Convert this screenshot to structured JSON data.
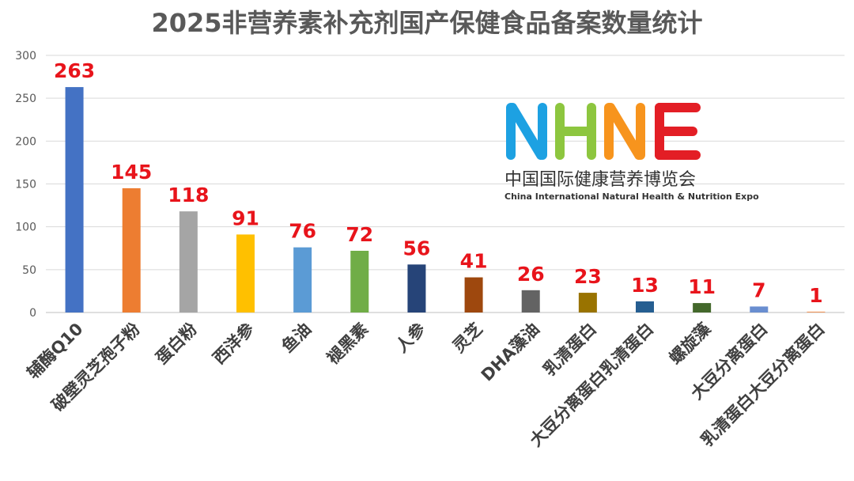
{
  "chart_data": {
    "type": "bar",
    "title": "2025非营养素补充剂国产保健食品备案数量统计",
    "categories": [
      "辅酶Q10",
      "破壁灵芝孢子粉",
      "蛋白粉",
      "西洋参",
      "鱼油",
      "褪黑素",
      "人参",
      "灵芝",
      "DHA藻油",
      "乳清蛋白",
      "大豆分离蛋白乳清蛋白",
      "螺旋藻",
      "大豆分离蛋白",
      "乳清蛋白大豆分离蛋白"
    ],
    "values": [
      263,
      145,
      118,
      91,
      76,
      72,
      56,
      41,
      26,
      23,
      13,
      11,
      7,
      1
    ],
    "colors": [
      "#4472c4",
      "#ed7d31",
      "#a5a5a5",
      "#ffc000",
      "#5b9bd5",
      "#70ad47",
      "#264478",
      "#9e480e",
      "#636363",
      "#997300",
      "#255e91",
      "#43682b",
      "#698ed0",
      "#f1975a"
    ],
    "ylim": [
      0,
      300
    ],
    "yticks": [
      0,
      50,
      100,
      150,
      200,
      250,
      300
    ],
    "grid": true,
    "legend": "none",
    "xlabel": "",
    "ylabel": ""
  },
  "logo": {
    "icon": "nhne-logo-icon",
    "text_cn": "中国国际健康营养博览会",
    "text_en": "China International Natural Health & Nutrition Expo",
    "colors": [
      "#1da1e2",
      "#8dc63f",
      "#f7941d",
      "#e31e25"
    ]
  }
}
